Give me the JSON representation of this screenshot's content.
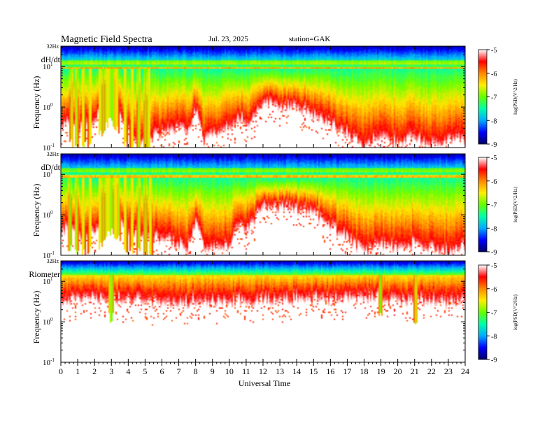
{
  "header": {
    "title": "Magnetic  Field  Spectra",
    "date": "Jul.  23, 2025",
    "station": "station=GAK"
  },
  "chart_data": {
    "type": "heatmap",
    "x_axis": {
      "label": "Universal Time",
      "range": [
        0,
        24
      ],
      "ticks": [
        "0",
        "1",
        "2",
        "3",
        "4",
        "5",
        "6",
        "7",
        "8",
        "9",
        "10",
        "11",
        "12",
        "13",
        "14",
        "15",
        "16",
        "17",
        "18",
        "19",
        "20",
        "21",
        "22",
        "23",
        "24"
      ]
    },
    "y_axis": {
      "label": "Frequency  (Hz)",
      "scale": "log",
      "range": [
        0.1,
        32
      ],
      "top_label": "32Hz",
      "tick_labels": [
        {
          "value": 10,
          "base": "10",
          "exp": "1"
        },
        {
          "value": 1,
          "base": "10",
          "exp": "0"
        },
        {
          "value": 0.1,
          "base": "10",
          "exp": "-1"
        }
      ]
    },
    "colorbar": {
      "label": "log(PSD(V^2/Hz)",
      "range": [
        -9,
        -5
      ],
      "ticks": [
        "-5",
        "-6",
        "-7",
        "-8",
        "-9"
      ],
      "colors": [
        "#000066",
        "#0000ff",
        "#00aaff",
        "#00ffaa",
        "#66ff00",
        "#ffee00",
        "#ff8800",
        "#ff0000",
        "#ffffff"
      ]
    },
    "panels": [
      {
        "name": "dH/dt",
        "hf_high": 0.95,
        "noise_floor_log_freq": [
          [
            0,
            -0.4
          ],
          [
            0.5,
            -0.2
          ],
          [
            1,
            -0.5
          ],
          [
            2,
            -0.2
          ],
          [
            3,
            0.3
          ],
          [
            4,
            -0.5
          ],
          [
            5,
            -0.8
          ],
          [
            6,
            -0.5
          ],
          [
            7,
            -0.4
          ],
          [
            7.5,
            -0.6
          ],
          [
            8,
            0.05
          ],
          [
            8.5,
            -0.7
          ],
          [
            9,
            -0.5
          ],
          [
            10,
            -0.4
          ],
          [
            10.7,
            -0.1
          ],
          [
            11,
            -0.3
          ],
          [
            12,
            0.2
          ],
          [
            13,
            0.1
          ],
          [
            14,
            0.15
          ],
          [
            15,
            -0.1
          ],
          [
            16,
            -0.3
          ],
          [
            17,
            -0.5
          ],
          [
            18,
            -0.9
          ],
          [
            19,
            -0.6
          ],
          [
            20,
            -0.8
          ],
          [
            21,
            -0.6
          ],
          [
            22,
            -0.8
          ],
          [
            23,
            -0.7
          ],
          [
            24,
            -0.7
          ]
        ],
        "bursts_ut": [
          0.6,
          0.9,
          1.3,
          1.7,
          2.3,
          2.5,
          2.7,
          2.8,
          2.9,
          3.0,
          3.1,
          3.3,
          3.8,
          4.2,
          4.6,
          5.0,
          5.2
        ]
      },
      {
        "name": "dD/dt",
        "hf_high": 0.9,
        "noise_floor_log_freq": [
          [
            0,
            -0.3
          ],
          [
            0.5,
            -0.2
          ],
          [
            1,
            -0.4
          ],
          [
            2,
            -0.3
          ],
          [
            3,
            0.2
          ],
          [
            4,
            -0.3
          ],
          [
            5,
            -0.4
          ],
          [
            6,
            -0.5
          ],
          [
            7,
            -0.6
          ],
          [
            7.5,
            -0.7
          ],
          [
            8,
            0.0
          ],
          [
            8.5,
            -0.7
          ],
          [
            9,
            -0.7
          ],
          [
            10,
            -0.6
          ],
          [
            10.7,
            0.0
          ],
          [
            11,
            -0.3
          ],
          [
            12,
            0.35
          ],
          [
            13,
            0.3
          ],
          [
            14,
            0.25
          ],
          [
            15,
            0.2
          ],
          [
            16,
            -0.2
          ],
          [
            17,
            -0.4
          ],
          [
            18,
            -0.8
          ],
          [
            19,
            -0.6
          ],
          [
            20,
            -0.7
          ],
          [
            21,
            -0.6
          ],
          [
            22,
            -0.7
          ],
          [
            23,
            -0.8
          ],
          [
            24,
            -0.6
          ]
        ],
        "bursts_ut": [
          0.5,
          0.9,
          1.3,
          1.7,
          2.3,
          2.5,
          2.7,
          2.8,
          2.9,
          3.0,
          3.2,
          3.4,
          3.8,
          4.2,
          4.6,
          5.0,
          5.3
        ]
      },
      {
        "name": "Riometer",
        "hf_high": 1.15,
        "noise_floor_log_freq": [
          [
            0,
            0.65
          ],
          [
            3,
            0.7
          ],
          [
            6,
            0.6
          ],
          [
            12,
            0.65
          ],
          [
            18,
            0.7
          ],
          [
            24,
            0.6
          ]
        ],
        "bursts_ut": [
          2.9,
          3.0,
          19.0,
          21.1
        ]
      }
    ]
  }
}
